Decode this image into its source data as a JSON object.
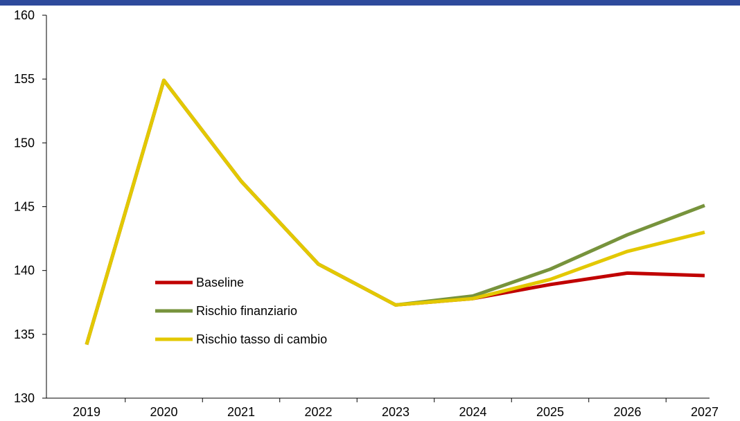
{
  "colors": {
    "band": "#2e4a9c",
    "axis": "#000000",
    "baseline": "#c00000",
    "rischio_finanziario": "#77933c",
    "rischio_tasso": "#e3c800"
  },
  "chart_data": {
    "type": "line",
    "title": "",
    "xlabel": "",
    "ylabel": "",
    "x": [
      "2019",
      "2020",
      "2021",
      "2022",
      "2023",
      "2024",
      "2025",
      "2026",
      "2027"
    ],
    "ylim": [
      130,
      160
    ],
    "yticks": [
      130,
      135,
      140,
      145,
      150,
      155,
      160
    ],
    "grid": false,
    "legend_position": "center-left",
    "series": [
      {
        "name": "Baseline",
        "color": "#c00000",
        "values": [
          134.2,
          154.9,
          147.0,
          140.5,
          137.3,
          137.8,
          138.9,
          139.8,
          139.6
        ]
      },
      {
        "name": "Rischio finanziario",
        "color": "#77933c",
        "values": [
          134.2,
          154.9,
          147.0,
          140.5,
          137.3,
          138.0,
          140.1,
          142.8,
          145.1
        ]
      },
      {
        "name": "Rischio tasso di cambio",
        "color": "#e3c800",
        "values": [
          134.2,
          154.9,
          147.0,
          140.5,
          137.3,
          137.8,
          139.3,
          141.5,
          143.0
        ]
      }
    ]
  }
}
